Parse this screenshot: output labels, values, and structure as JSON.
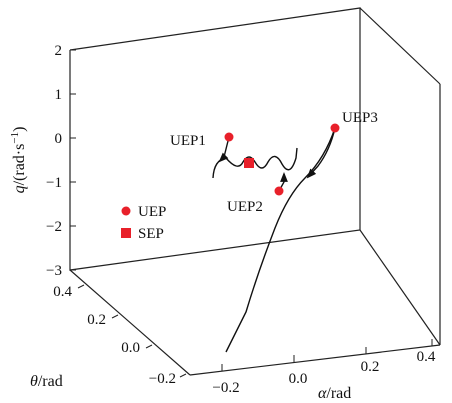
{
  "chart_data": {
    "type": "line",
    "projection": "3d",
    "axes": {
      "z": {
        "label_var": "q",
        "label_unit": "/(rad·s",
        "label_exp": "−1",
        "label_close": ")",
        "ticks": [
          "2",
          "1",
          "0",
          "−1",
          "−2",
          "−3"
        ],
        "range": [
          -3,
          2
        ]
      },
      "theta": {
        "label_var": "θ",
        "label_unit": "/rad",
        "ticks": [
          "0.4",
          "0.2",
          "0.0",
          "−0.2"
        ],
        "range": [
          -0.2,
          0.4
        ]
      },
      "alpha": {
        "label_var": "α",
        "label_unit": "/rad",
        "ticks": [
          "−0.2",
          "0.0",
          "0.2",
          "0.4"
        ],
        "range": [
          -0.2,
          0.4
        ]
      }
    },
    "points": [
      {
        "name": "UEP1",
        "type": "UEP",
        "label": "UEP1"
      },
      {
        "name": "UEP2",
        "type": "UEP",
        "label": "UEP2"
      },
      {
        "name": "UEP3",
        "type": "UEP",
        "label": "UEP3"
      },
      {
        "name": "SEP",
        "type": "SEP",
        "label": ""
      }
    ],
    "legend": {
      "placement": "middle-left",
      "entries": [
        {
          "label": "UEP",
          "marker": "circle"
        },
        {
          "label": "SEP",
          "marker": "square"
        }
      ]
    },
    "marker_color": "#e8202a",
    "line_color": "#111111"
  }
}
